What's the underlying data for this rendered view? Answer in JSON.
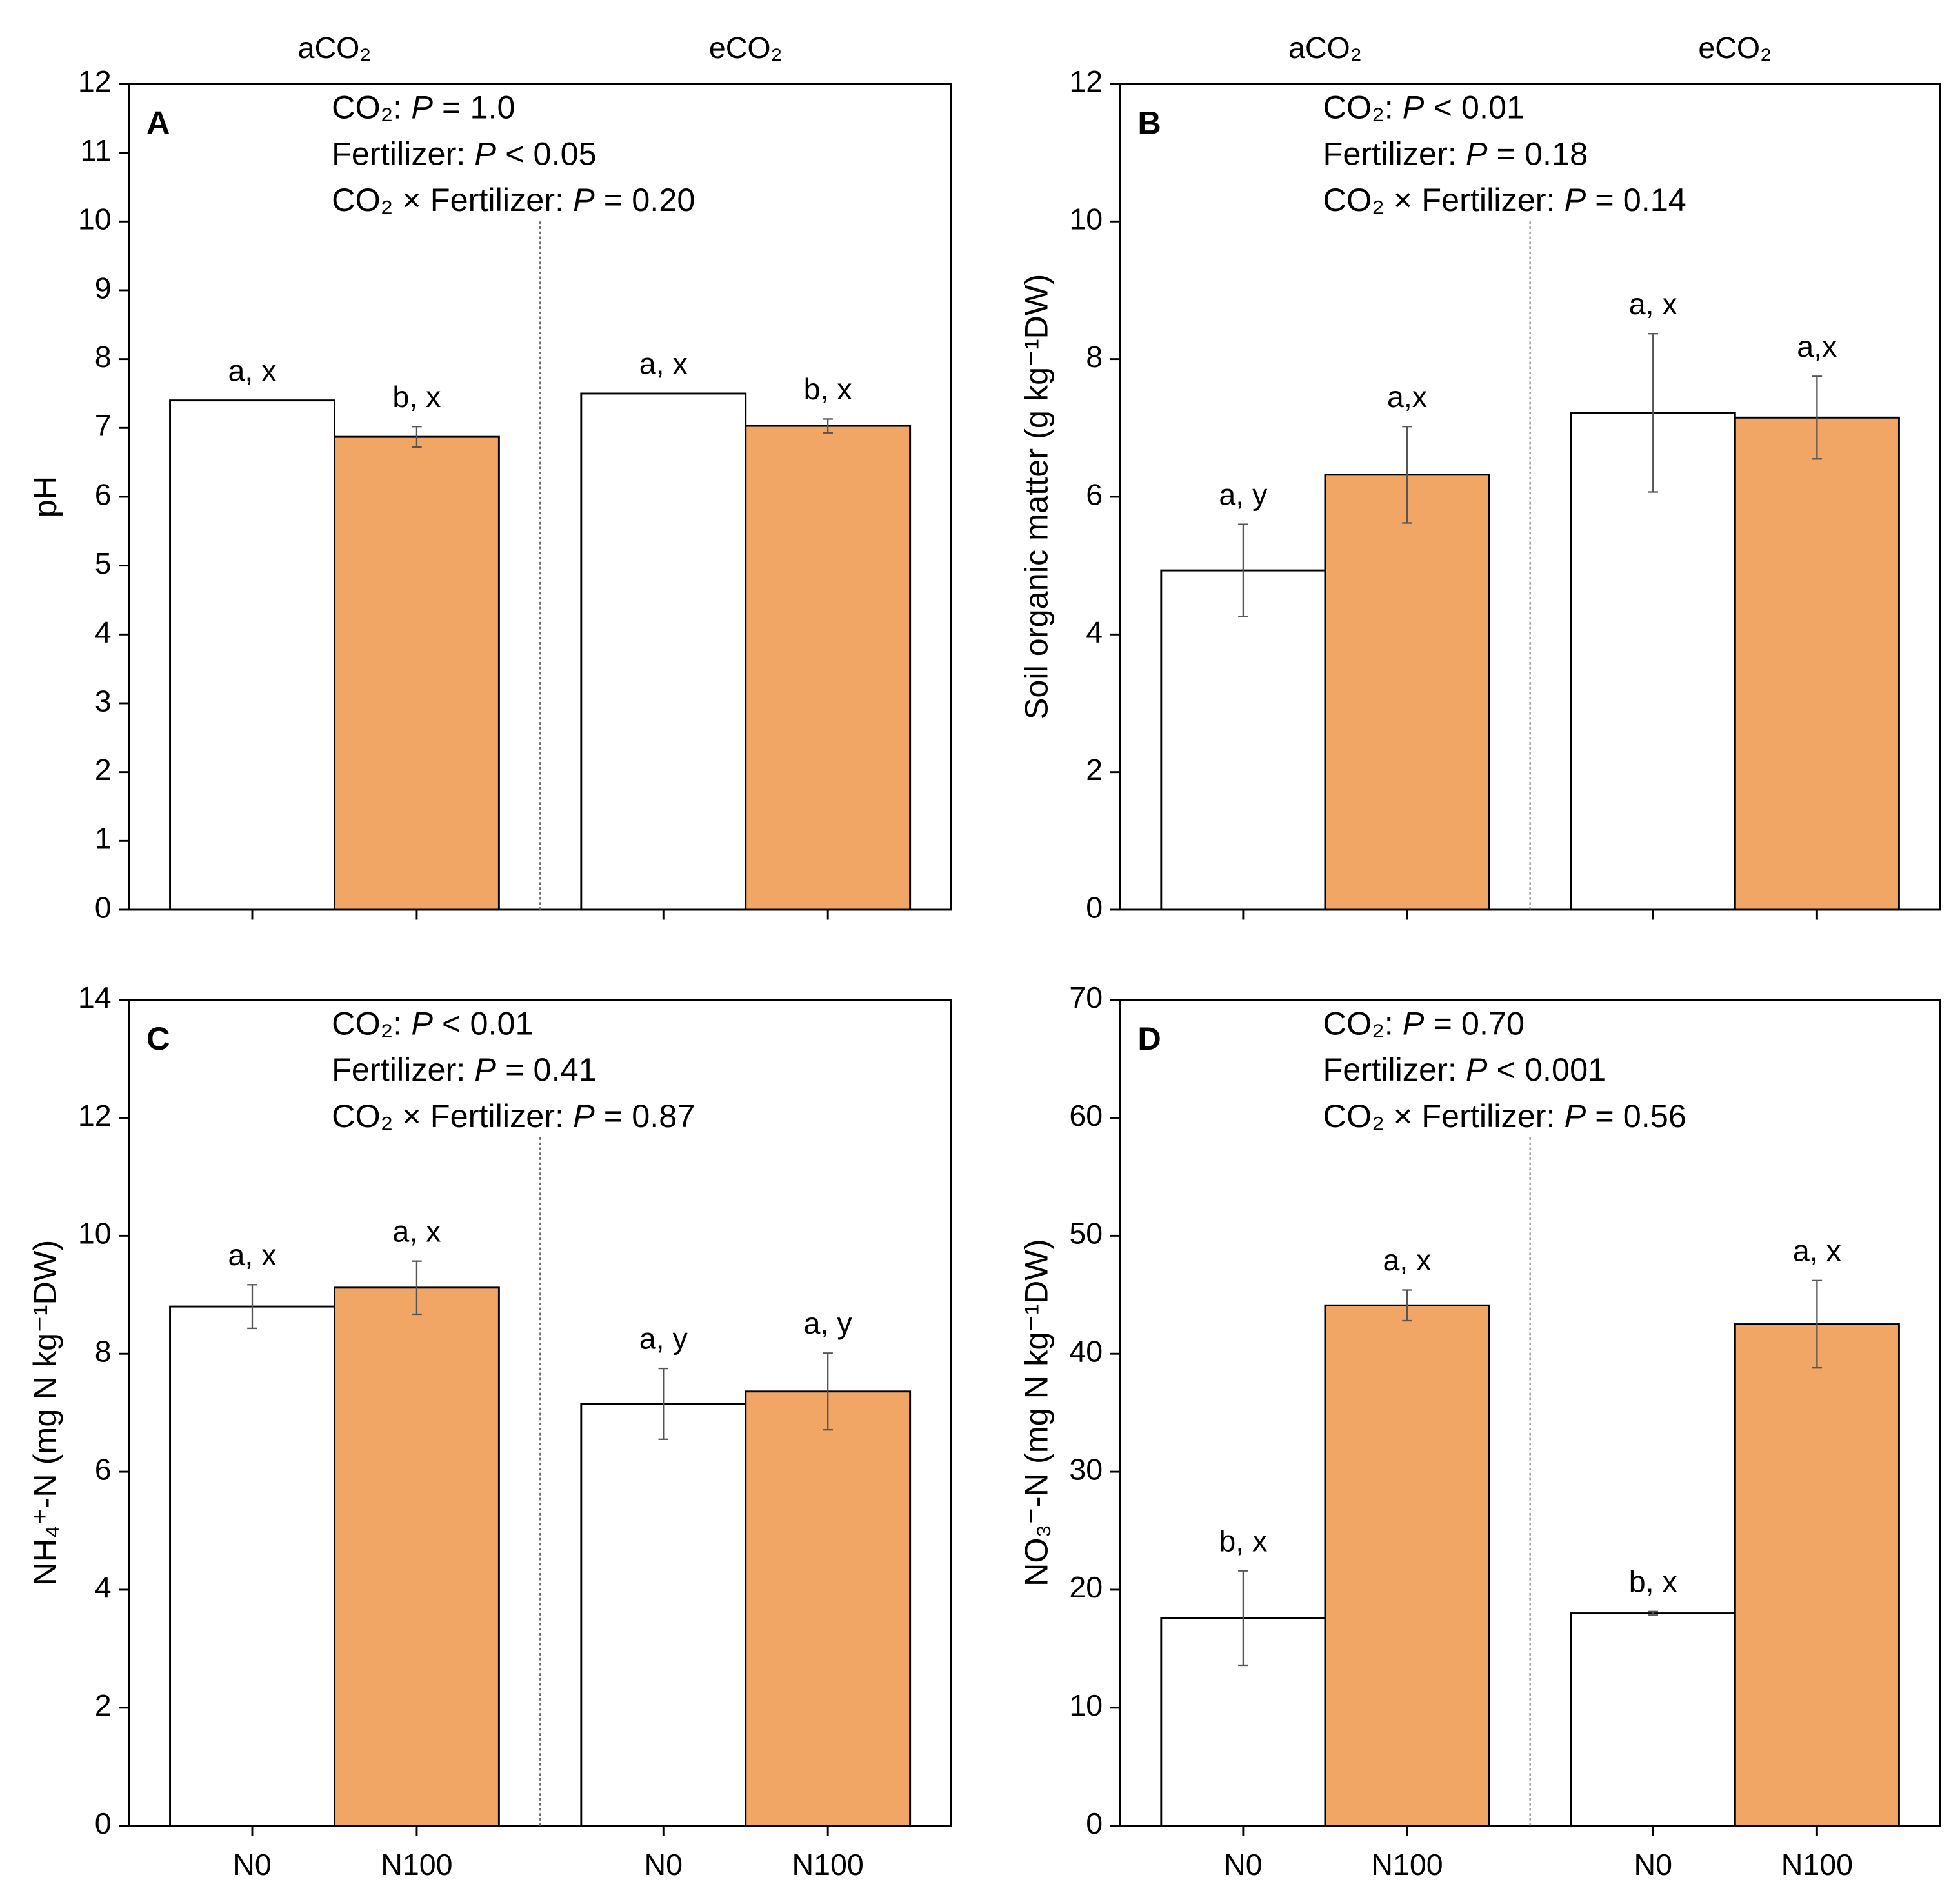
{
  "chart_data": [
    {
      "type": "bar",
      "panel": "A",
      "groups": [
        "aCO₂",
        "eCO₂"
      ],
      "ylabel": "pH",
      "annotations": [
        "CO₂: P = 1.0",
        "Fertilizer: P < 0.05",
        "CO₂ × Fertilizer: P = 0.20"
      ],
      "categories": [
        null,
        null,
        null,
        null
      ],
      "values": [
        7.4,
        6.87,
        7.5,
        7.03
      ],
      "errors": [
        0,
        0.15,
        0,
        0.1
      ],
      "letters": [
        "a, x",
        "b, x",
        "a, x",
        "b, x"
      ],
      "colors": [
        "#ffffff",
        "#f2a666",
        "#ffffff",
        "#f2a666"
      ],
      "ylim": [
        0,
        12
      ],
      "yticks": [
        0,
        1,
        2,
        3,
        4,
        5,
        6,
        7,
        8,
        9,
        10,
        11,
        12
      ]
    },
    {
      "type": "bar",
      "panel": "B",
      "groups": [
        "aCO₂",
        "eCO₂"
      ],
      "ylabel": "Soil organic matter (g kg⁻¹DW)",
      "annotations": [
        "CO₂: P < 0.01",
        "Fertilizer: P = 0.18",
        "CO₂ × Fertilizer: P = 0.14"
      ],
      "categories": [
        null,
        null,
        null,
        null
      ],
      "values": [
        4.93,
        6.32,
        7.22,
        7.15
      ],
      "errors": [
        0.67,
        0.7,
        1.15,
        0.6
      ],
      "letters": [
        "a, y",
        "a,x",
        "a, x",
        "a,x"
      ],
      "colors": [
        "#ffffff",
        "#f2a666",
        "#ffffff",
        "#f2a666"
      ],
      "ylim": [
        0,
        12
      ],
      "yticks": [
        0,
        2,
        4,
        6,
        8,
        10,
        12
      ]
    },
    {
      "type": "bar",
      "panel": "C",
      "groups": [],
      "ylabel": "NH₄⁺-N (mg N kg⁻¹DW)",
      "annotations": [
        "CO₂: P < 0.01",
        "Fertilizer: P = 0.41",
        "CO₂ × Fertilizer: P = 0.87"
      ],
      "categories": [
        "N0",
        "N100",
        "N0",
        "N100"
      ],
      "values": [
        8.8,
        9.12,
        7.15,
        7.36
      ],
      "errors": [
        0.37,
        0.45,
        0.6,
        0.65
      ],
      "letters": [
        "a, x",
        "a, x",
        "a, y",
        "a, y"
      ],
      "colors": [
        "#ffffff",
        "#f2a666",
        "#ffffff",
        "#f2a666"
      ],
      "ylim": [
        0,
        14
      ],
      "yticks": [
        0,
        2,
        4,
        6,
        8,
        10,
        12,
        14
      ]
    },
    {
      "type": "bar",
      "panel": "D",
      "groups": [],
      "ylabel": "NO₃⁻-N (mg N kg⁻¹DW)",
      "annotations": [
        "CO₂: P = 0.70",
        "Fertilizer: P < 0.001",
        "CO₂ × Fertilizer: P = 0.56"
      ],
      "categories": [
        "N0",
        "N100",
        "N0",
        "N100"
      ],
      "values": [
        17.6,
        44.1,
        18.0,
        42.5
      ],
      "errors": [
        4.0,
        1.3,
        0.15,
        3.7
      ],
      "letters": [
        "b, x",
        "a, x",
        "b, x",
        "a, x"
      ],
      "colors": [
        "#ffffff",
        "#f2a666",
        "#ffffff",
        "#f2a666"
      ],
      "ylim": [
        0,
        70
      ],
      "yticks": [
        0,
        10,
        20,
        30,
        40,
        50,
        60,
        70
      ]
    }
  ]
}
